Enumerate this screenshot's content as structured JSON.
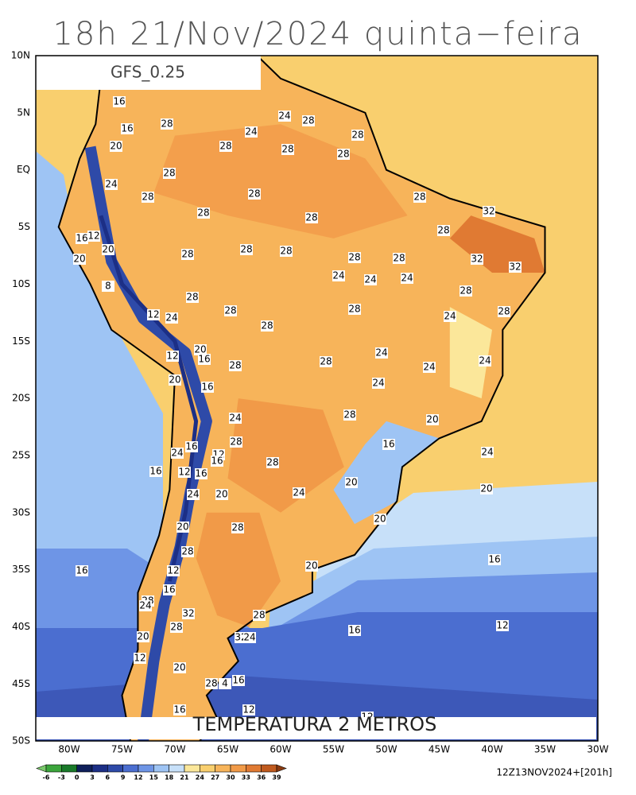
{
  "title": "18h 21/Nov/2024 quinta−feira",
  "model_label": "GFS_0.25",
  "footer_title": "TEMPERATURA 2 METROS",
  "run_label": "12Z13NOV2024+[201h]",
  "lat_labels": [
    "10N",
    "5N",
    "EQ",
    "5S",
    "10S",
    "15S",
    "20S",
    "25S",
    "30S",
    "35S",
    "40S",
    "45S",
    "50S"
  ],
  "lon_labels": [
    "80W",
    "75W",
    "70W",
    "65W",
    "60W",
    "55W",
    "50W",
    "45W",
    "40W",
    "35W",
    "30W"
  ],
  "colorbar": {
    "ticks": [
      -6,
      -3,
      0,
      3,
      6,
      9,
      12,
      15,
      18,
      21,
      24,
      27,
      30,
      33,
      36,
      39
    ],
    "colors": [
      "#7ac96b",
      "#3ca53c",
      "#1a7a2a",
      "#0f1f5a",
      "#1c2f86",
      "#2e4aa8",
      "#4b6ed0",
      "#6e95e6",
      "#9ec4f4",
      "#c7e0f9",
      "#fbe79a",
      "#f9cf6e",
      "#f7b45a",
      "#f19a48",
      "#e07a33",
      "#c05a1e",
      "#8a3a10"
    ]
  },
  "contour_labels": [
    16,
    16,
    20,
    28,
    24,
    24,
    28,
    28,
    28,
    28,
    28,
    28,
    24,
    28,
    28,
    28,
    28,
    28,
    32,
    28,
    16,
    12,
    20,
    20,
    28,
    28,
    28,
    28,
    28,
    32,
    32,
    8,
    24,
    24,
    24,
    28,
    28,
    28,
    28,
    28,
    12,
    24,
    24,
    28,
    20,
    12,
    16,
    24,
    28,
    28,
    24,
    24,
    20,
    16,
    24,
    28,
    20,
    24,
    24,
    16,
    12,
    16,
    28,
    16,
    24,
    28,
    16,
    12,
    16,
    20,
    24,
    20,
    24,
    20,
    20,
    20,
    28,
    28,
    20,
    16,
    16,
    12,
    16,
    28,
    24,
    32,
    28,
    28,
    12,
    16,
    20,
    32,
    24,
    12,
    20,
    28,
    4,
    16,
    16,
    12,
    12
  ]
}
